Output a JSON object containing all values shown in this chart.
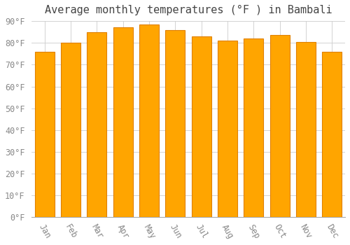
{
  "title": "Average monthly temperatures (°F ) in Bambali",
  "months": [
    "Jan",
    "Feb",
    "Mar",
    "Apr",
    "May",
    "Jun",
    "Jul",
    "Aug",
    "Sep",
    "Oct",
    "Nov",
    "Dec"
  ],
  "values": [
    76,
    80,
    85,
    87,
    88.5,
    86,
    83,
    81,
    82,
    83.5,
    80.5,
    76
  ],
  "bar_color": "#FFA500",
  "bar_edge_color": "#E08000",
  "background_color": "#FFFFFF",
  "plot_bg_color": "#FFFFFF",
  "grid_color": "#CCCCCC",
  "ylim": [
    0,
    90
  ],
  "yticks": [
    0,
    10,
    20,
    30,
    40,
    50,
    60,
    70,
    80,
    90
  ],
  "title_fontsize": 11,
  "tick_fontsize": 8.5,
  "bar_width": 0.75
}
